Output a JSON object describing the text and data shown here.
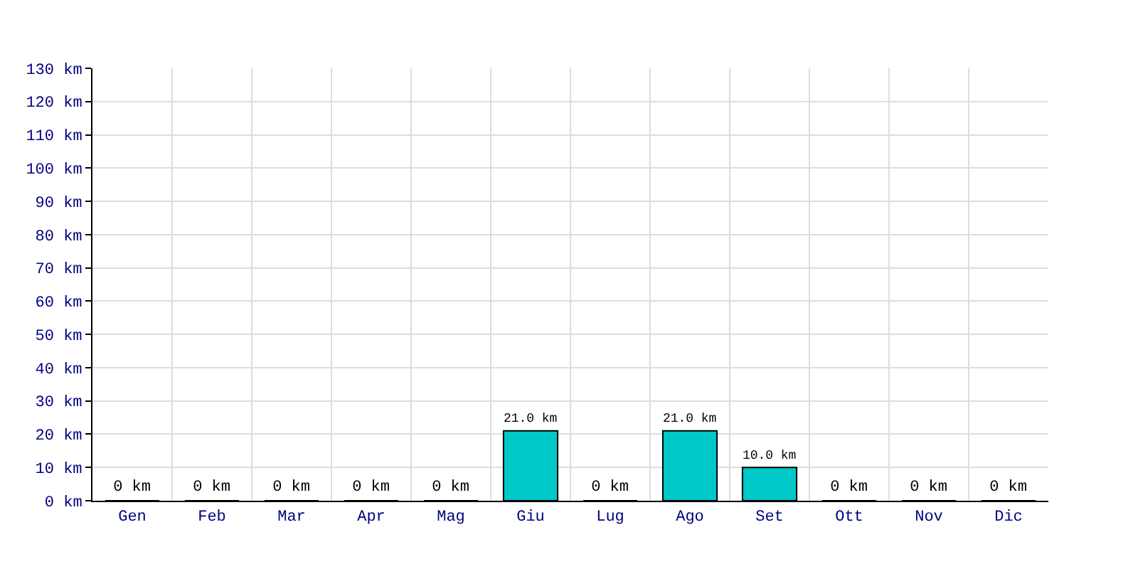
{
  "chart_data": {
    "type": "bar",
    "categories": [
      "Gen",
      "Feb",
      "Mar",
      "Apr",
      "Mag",
      "Giu",
      "Lug",
      "Ago",
      "Set",
      "Ott",
      "Nov",
      "Dic"
    ],
    "values": [
      0,
      0,
      0,
      0,
      0,
      21.0,
      0,
      21.0,
      10.0,
      0,
      0,
      0
    ],
    "value_labels": [
      "0 km",
      "0 km",
      "0 km",
      "0 km",
      "0 km",
      "21.0 km",
      "0 km",
      "21.0 km",
      "10.0 km",
      "0 km",
      "0 km",
      "0 km"
    ],
    "color": "#00c8c8",
    "ylim": [
      0,
      130
    ],
    "yticks": [
      {
        "value": 0,
        "label": "0 km"
      },
      {
        "value": 10,
        "label": "10 km"
      },
      {
        "value": 20,
        "label": "20 km"
      },
      {
        "value": 30,
        "label": "30 km"
      },
      {
        "value": 40,
        "label": "40 km"
      },
      {
        "value": 50,
        "label": "50 km"
      },
      {
        "value": 60,
        "label": "60 km"
      },
      {
        "value": 70,
        "label": "70 km"
      },
      {
        "value": 80,
        "label": "80 km"
      },
      {
        "value": 90,
        "label": "90 km"
      },
      {
        "value": 100,
        "label": "100 km"
      },
      {
        "value": 110,
        "label": "110 km"
      },
      {
        "value": 120,
        "label": "120 km"
      },
      {
        "value": 130,
        "label": "130 km"
      }
    ],
    "grid": true
  }
}
